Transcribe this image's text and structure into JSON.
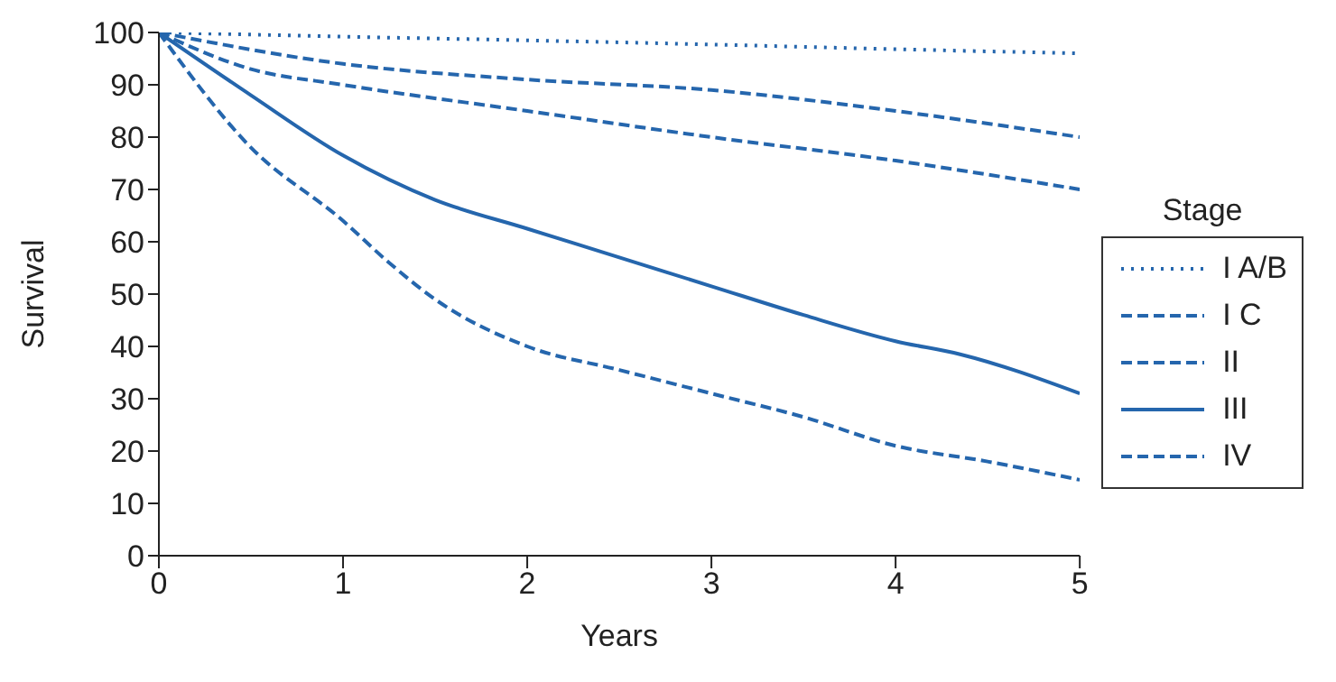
{
  "chart_data": {
    "type": "line",
    "xlabel": "Years",
    "ylabel": "Survival",
    "legend_title": "Stage",
    "xlim": [
      0,
      5
    ],
    "xticks": [
      0,
      1,
      2,
      3,
      4,
      5
    ],
    "ylim": [
      0,
      100
    ],
    "yticks": [
      0,
      10,
      20,
      30,
      40,
      50,
      60,
      70,
      80,
      90,
      100
    ],
    "grid": false,
    "legend": "right",
    "marker": "none",
    "series": [
      {
        "name": "I A/B",
        "color": "#2566ad",
        "line_style": "dotted",
        "x": [
          0,
          1,
          2,
          3,
          4,
          5
        ],
        "values": [
          100,
          99.2,
          98.5,
          97.7,
          96.8,
          96
        ]
      },
      {
        "name": "I C",
        "color": "#2566ad",
        "line_style": "dashed",
        "x": [
          0,
          1,
          2,
          3,
          4,
          5
        ],
        "values": [
          100,
          94,
          91,
          89,
          85,
          80
        ]
      },
      {
        "name": "II",
        "color": "#2566ad",
        "line_style": "dashed",
        "x": [
          0,
          0.5,
          1,
          2,
          3,
          4,
          5
        ],
        "values": [
          100,
          93,
          90,
          85,
          80,
          75.5,
          70
        ]
      },
      {
        "name": "III",
        "color": "#2566ad",
        "line_style": "solid",
        "x": [
          0,
          0.5,
          1,
          1.5,
          2,
          2.5,
          3,
          3.5,
          4,
          4.35,
          5
        ],
        "values": [
          100,
          88,
          76.5,
          68,
          62.5,
          57,
          51.5,
          46,
          41,
          38.5,
          31
        ]
      },
      {
        "name": "IV",
        "color": "#2566ad",
        "line_style": "dashed",
        "x": [
          0,
          0.5,
          1,
          1.25,
          1.5,
          2,
          2.5,
          3,
          3.5,
          4,
          4.5,
          5
        ],
        "values": [
          100,
          78,
          64,
          56,
          49,
          40,
          35.5,
          31,
          26.5,
          21,
          18,
          14.5
        ]
      }
    ]
  }
}
